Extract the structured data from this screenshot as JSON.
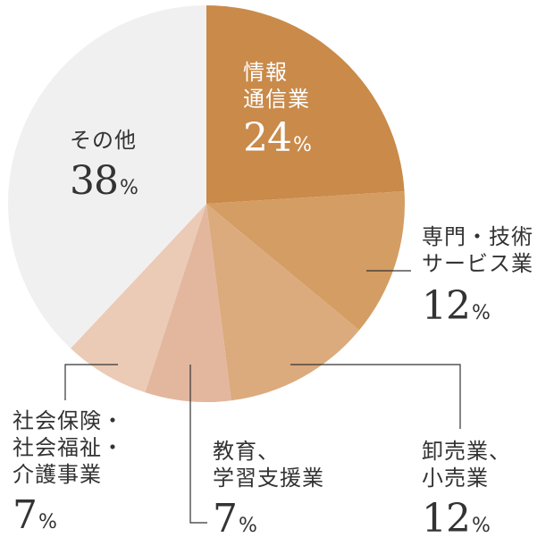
{
  "chart_data": {
    "type": "pie",
    "start_angle_deg": 0,
    "direction": "clockwise",
    "slices": [
      {
        "name_lines": [
          "情報",
          "通信業"
        ],
        "value": 24,
        "value_label": "24",
        "unit": "%",
        "color": "#c98a4a"
      },
      {
        "name_lines": [
          "専門・技術",
          "サービス業"
        ],
        "value": 12,
        "value_label": "12",
        "unit": "%",
        "color": "#d49d63"
      },
      {
        "name_lines": [
          "卸売業、",
          "小売業"
        ],
        "value": 12,
        "value_label": "12",
        "unit": "%",
        "color": "#dbab7d"
      },
      {
        "name_lines": [
          "教育、",
          "学習支援業"
        ],
        "value": 7,
        "value_label": "7",
        "unit": "%",
        "color": "#e3b79e"
      },
      {
        "name_lines": [
          "社会保険・",
          "社会福祉・",
          "介護事業"
        ],
        "value": 7,
        "value_label": "7",
        "unit": "%",
        "color": "#ebcbb6"
      },
      {
        "name_lines": [
          "その他"
        ],
        "value": 38,
        "value_label": "38",
        "unit": "%",
        "color": "#f1f0f1"
      }
    ]
  }
}
